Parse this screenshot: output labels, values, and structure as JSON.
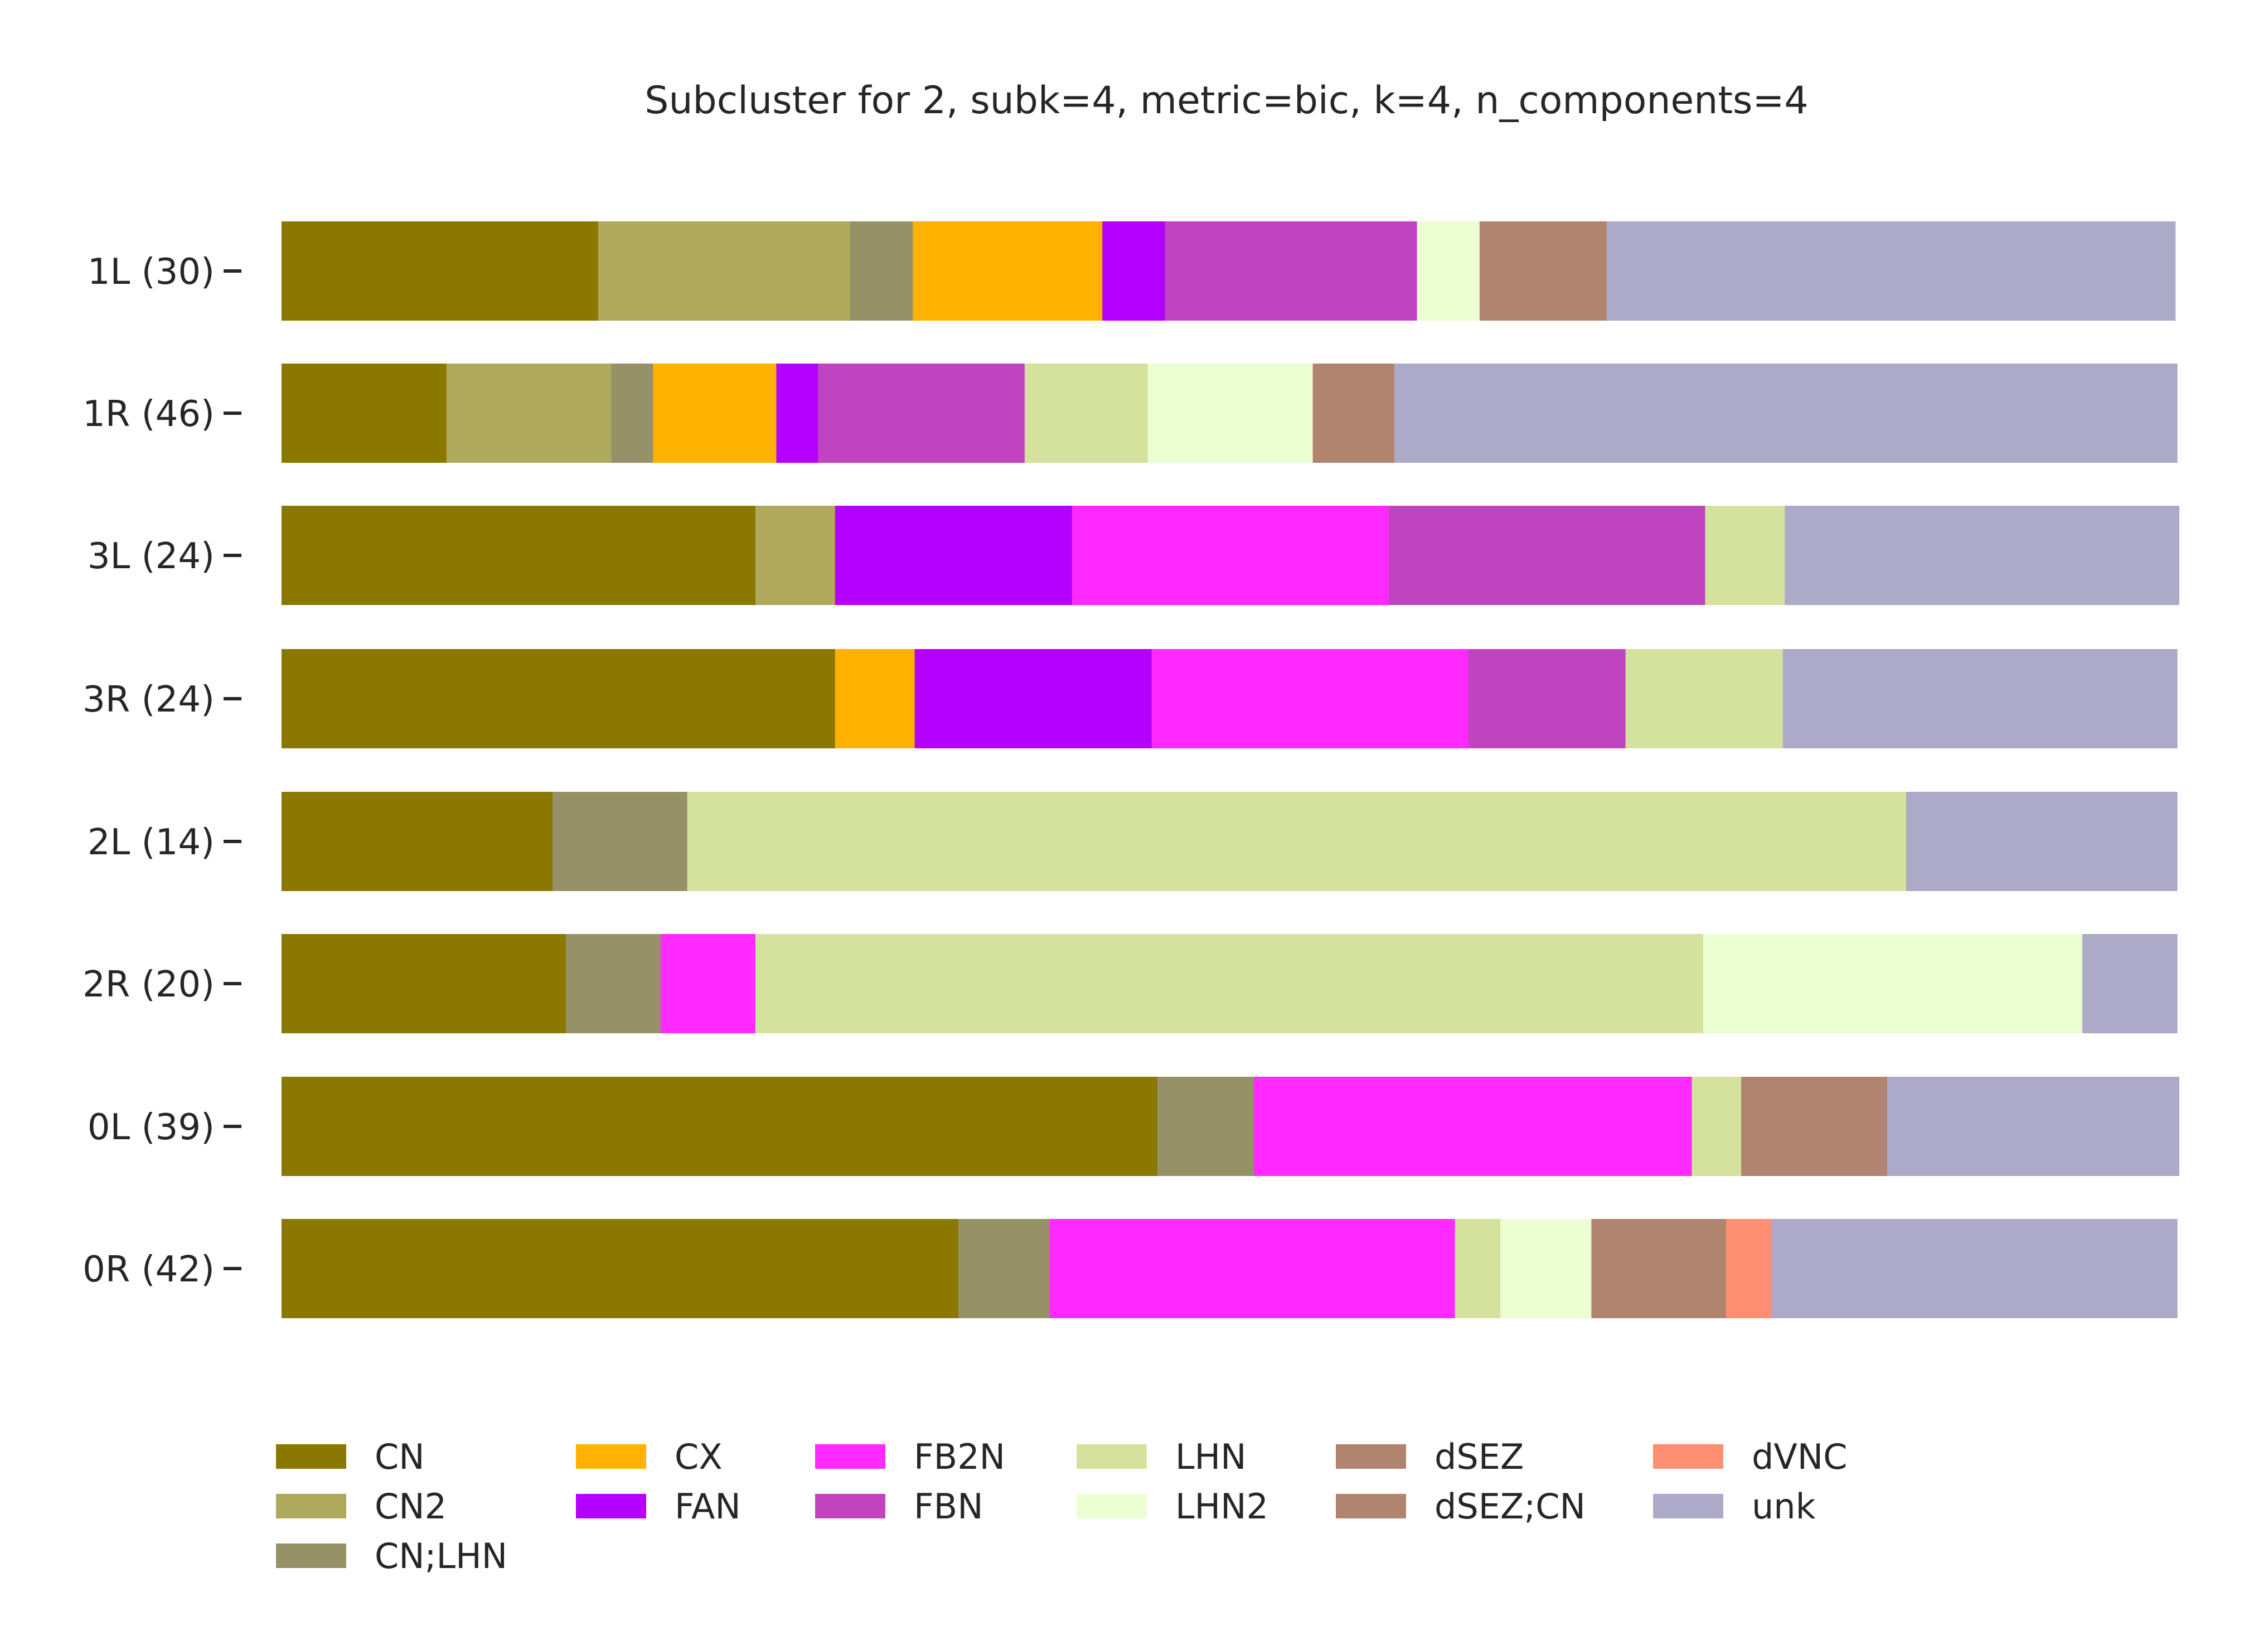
{
  "chart_data": {
    "type": "bar",
    "orientation": "horizontal",
    "stacked": true,
    "normalized": true,
    "title": "Subcluster for 2, subk=4, metric=bic, k=4, n_components=4",
    "xlabel": "",
    "ylabel": "",
    "xlim": [
      0,
      1
    ],
    "grid": false,
    "legend_position": "bottom",
    "categories": [
      "1L (30)",
      "1R (46)",
      "3L (24)",
      "3R (24)",
      "2L (14)",
      "2R (20)",
      "0L (39)",
      "0R (42)"
    ],
    "series": [
      {
        "name": "CN",
        "color": "#8b7800",
        "values": [
          0.167,
          0.087,
          0.25,
          0.292,
          0.143,
          0.15,
          0.462,
          0.357
        ]
      },
      {
        "name": "CN2",
        "color": "#aea95c",
        "values": [
          0.133,
          0.087,
          0.042,
          0.0,
          0.0,
          0.0,
          0.0,
          0.0
        ]
      },
      {
        "name": "CN;LHN",
        "color": "#979168",
        "values": [
          0.033,
          0.022,
          0.0,
          0.0,
          0.071,
          0.05,
          0.051,
          0.048
        ]
      },
      {
        "name": "CX",
        "color": "#ffb300",
        "values": [
          0.1,
          0.065,
          0.0,
          0.042,
          0.0,
          0.0,
          0.0,
          0.0
        ]
      },
      {
        "name": "FAN",
        "color": "#b300ff",
        "values": [
          0.033,
          0.022,
          0.125,
          0.125,
          0.0,
          0.0,
          0.0,
          0.0
        ]
      },
      {
        "name": "FB2N",
        "color": "#ff2aff",
        "values": [
          0.0,
          0.0,
          0.167,
          0.167,
          0.0,
          0.05,
          0.231,
          0.214
        ]
      },
      {
        "name": "FBN",
        "color": "#c043c0",
        "values": [
          0.133,
          0.109,
          0.167,
          0.083,
          0.0,
          0.0,
          0.0,
          0.0
        ]
      },
      {
        "name": "LHN",
        "color": "#d5e29d",
        "values": [
          0.0,
          0.065,
          0.042,
          0.083,
          0.643,
          0.5,
          0.026,
          0.024
        ]
      },
      {
        "name": "LHN2",
        "color": "#ebffd3",
        "values": [
          0.033,
          0.087,
          0.0,
          0.0,
          0.0,
          0.2,
          0.0,
          0.048
        ]
      },
      {
        "name": "dSEZ",
        "color": "#b0846e",
        "values": [
          0.0,
          0.0,
          0.0,
          0.0,
          0.0,
          0.0,
          0.0,
          0.0
        ]
      },
      {
        "name": "dSEZ;CN",
        "color": "#b0846e",
        "values": [
          0.067,
          0.043,
          0.0,
          0.0,
          0.0,
          0.0,
          0.077,
          0.071
        ]
      },
      {
        "name": "dVNC",
        "color": "#ff8f73",
        "values": [
          0.0,
          0.0,
          0.0,
          0.0,
          0.0,
          0.0,
          0.0,
          0.024
        ]
      },
      {
        "name": "unk",
        "color": "#aca9c9",
        "values": [
          0.3,
          0.413,
          0.208,
          0.208,
          0.143,
          0.05,
          0.154,
          0.214
        ]
      }
    ]
  }
}
